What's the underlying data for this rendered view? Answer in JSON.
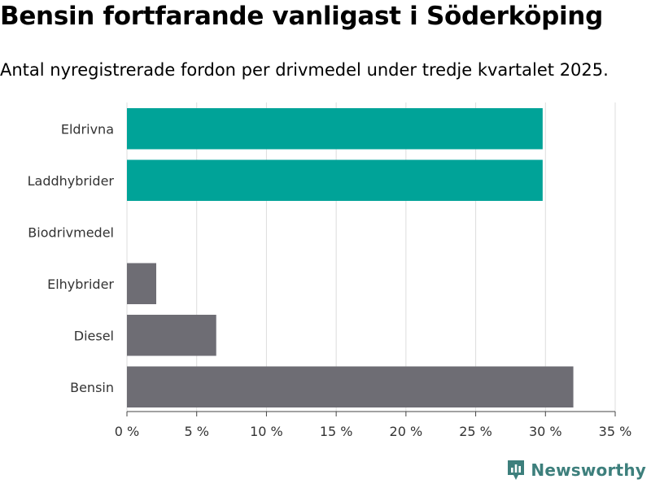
{
  "title": "Bensin fortfarande vanligast i Söderköping",
  "subtitle": "Antal nyregistrerade fordon per drivmedel under tredje kvartalet 2025.",
  "brand": "Newsworthy",
  "colors": {
    "highlight": "#00a398",
    "default": "#6e6d74",
    "grid": "#dddddd",
    "brand": "#3d7f7c"
  },
  "chart_data": {
    "type": "bar",
    "orientation": "horizontal",
    "categories": [
      "Eldrivna",
      "Laddhybrider",
      "Biodrivmedel",
      "Elhybrider",
      "Diesel",
      "Bensin"
    ],
    "values": [
      29.8,
      29.8,
      0,
      2.1,
      6.4,
      32.0
    ],
    "highlighted": [
      true,
      true,
      false,
      false,
      false,
      false
    ],
    "xlim": [
      0,
      35
    ],
    "xticks": [
      0,
      5,
      10,
      15,
      20,
      25,
      30,
      35
    ],
    "xtick_labels": [
      "0 %",
      "5 %",
      "10 %",
      "15 %",
      "20 %",
      "25 %",
      "30 %",
      "35 %"
    ],
    "grid": true
  }
}
